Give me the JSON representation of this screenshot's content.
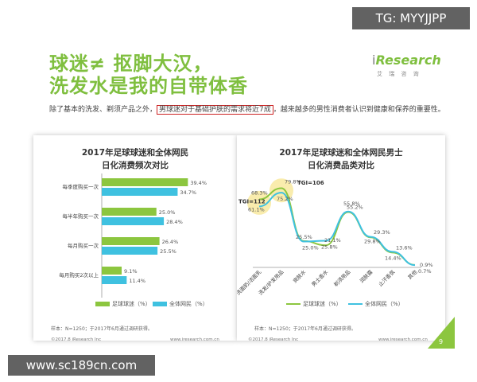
{
  "watermarks": {
    "top": "TG: MYYJJPP",
    "bottom": "www.sc189cn.com"
  },
  "headline": {
    "line1": "球迷≠ 抠脚大汉，",
    "line2": "洗发水是我的自带体香"
  },
  "logo": {
    "i": "i",
    "name": "Research",
    "sub": "艾 瑞 咨 询"
  },
  "intro": {
    "before": "除了基本的洗发、剃须产品之外，",
    "highlight": "男球迷对于基础护肤的需求将近7成",
    "after": "，越来越多的男性消费者认识到健康和保养的重要性。"
  },
  "colors": {
    "green": "#8cc63f",
    "blue": "#3fc1e0",
    "circle": "#f6e48a",
    "accent": "#7fbf3f"
  },
  "chart_data": [
    {
      "type": "bar",
      "title": "2017年足球球迷和全体网民",
      "subtitle": "日化消费频次对比",
      "categories": [
        "每季度购买一次",
        "每半年购买一次",
        "每月购买一次",
        "每月购买2次以上"
      ],
      "series": [
        {
          "name": "足球球迷（%）",
          "values": [
            39.4,
            25.0,
            26.4,
            9.1
          ],
          "labels": [
            "39.4%",
            "25.0%",
            "26.4%",
            "9.1%"
          ]
        },
        {
          "name": "全体网民（%）",
          "values": [
            34.7,
            28.4,
            25.5,
            11.4
          ],
          "labels": [
            "34.7%",
            "28.4%",
            "25.5%",
            "11.4%"
          ]
        }
      ],
      "orientation": "horizontal",
      "source": "样本：N=1250；于2017年6月通过调研获得。",
      "footer": "©2017.8 iResearch Inc",
      "footer_url": "www.iresearch.com.cn"
    },
    {
      "type": "line",
      "title": "2017年足球球迷和全体网民男士",
      "subtitle": "日化消费品类对比",
      "categories": [
        "洗面奶/洁面乳",
        "洗发/护发用品",
        "爽肤水",
        "男士香水",
        "剃须用品",
        "润肤露",
        "止汗香氛",
        "其他"
      ],
      "series": [
        {
          "name": "足球球迷（%）",
          "values": [
            68.3,
            79.8,
            25.5,
            21.1,
            55.2,
            29.3,
            13.6,
            0.9
          ],
          "labels": [
            "68.3%",
            "79.8%",
            "25.5%",
            "21.1%",
            "55.2%",
            "29.3%",
            "13.6%",
            "0.9%"
          ]
        },
        {
          "name": "全体网民（%）",
          "values": [
            61.1,
            75.2,
            25.0,
            25.8,
            55.8,
            29.8,
            14.4,
            0.7
          ],
          "labels": [
            "61.1%",
            "75.2%",
            "25.0%",
            "25.8%",
            "55.8%",
            "29.8%",
            "14.4%",
            "0.7%"
          ]
        }
      ],
      "annotations": [
        "TGI=112",
        "TGI=106"
      ],
      "source": "样本：N=1250；于2017年6月通过调研获得。",
      "footer": "©2017.8 iResearch Inc",
      "footer_url": "www.iresearch.com.cn",
      "page": "9"
    }
  ]
}
